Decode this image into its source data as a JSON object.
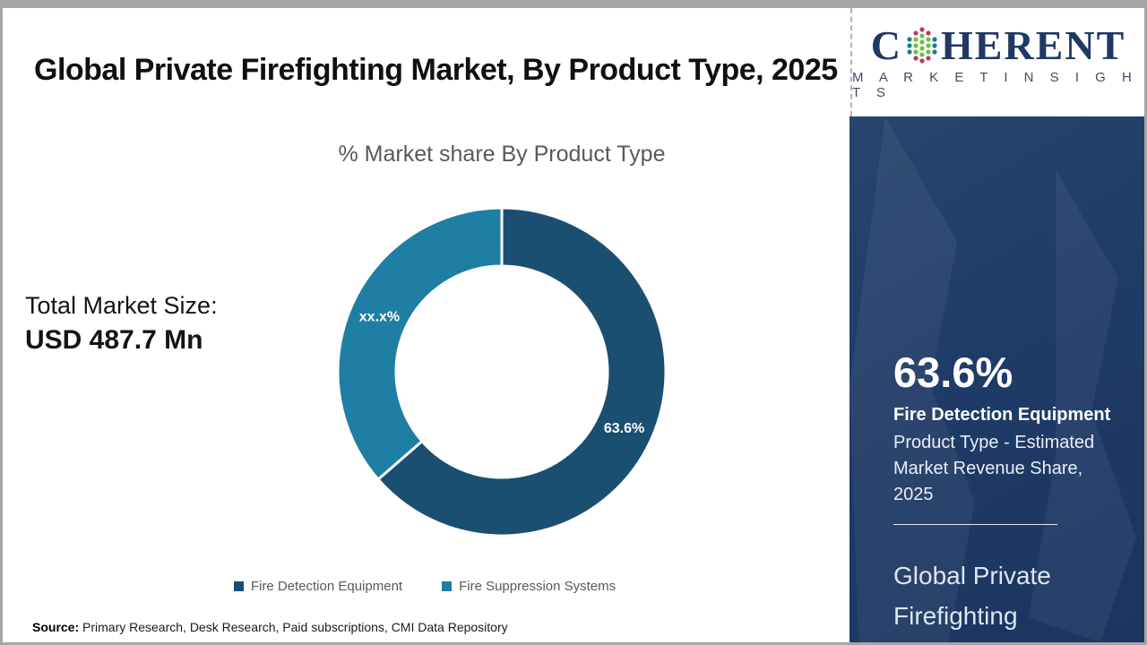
{
  "header": {
    "title": "Global Private Firefighting Market, By Product Type, 2025",
    "brand": {
      "name_first_letter": "C",
      "name_rest": "HERENT",
      "tagline": "M A R K E T   I N S I G H T S"
    }
  },
  "total_market": {
    "label": "Total Market Size:",
    "value": "USD 487.7 Mn"
  },
  "chart_data": {
    "type": "pie",
    "subtype": "donut",
    "title": "% Market share By Product Type",
    "start_angle_deg": 0,
    "direction": "clockwise",
    "legend_position": "bottom",
    "outer_radius": 183,
    "inner_radius": 118,
    "label_radius": 150,
    "series": [
      {
        "name": "Fire Detection Equipment",
        "value": 63.6,
        "label": "63.6%",
        "color": "#1b4f72"
      },
      {
        "name": "Fire Suppression Systems",
        "value": 36.4,
        "label": "xx.x%",
        "color": "#1f7ea4"
      }
    ]
  },
  "sidebar": {
    "stat_value": "63.6%",
    "stat_label": "Fire Detection Equipment",
    "stat_description": "Product Type - Estimated Market Revenue Share, 2025",
    "market_name": "Global Private Firefighting Market"
  },
  "footer": {
    "source_label": "Source:",
    "source_text": " Primary Research, Desk Research, Paid subscriptions, CMI Data Repository"
  },
  "colors": {
    "accent_dark": "#1b4f72",
    "accent_teal": "#1f7ea4",
    "sidebar_bg": "#1e3a66",
    "logo_navy": "#1f3864",
    "border_gray": "#a6a6a6"
  }
}
